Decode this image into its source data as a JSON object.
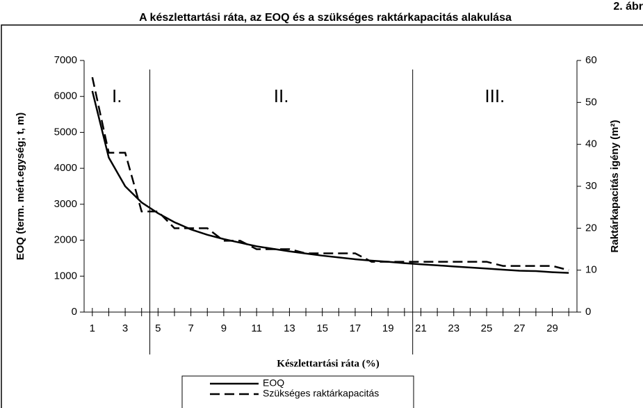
{
  "chart_data": {
    "type": "line",
    "figure_label": "2. ábr",
    "title": "A készlettartási ráta, az EOQ és a szükséges raktárkapacitás alakulása",
    "x_label": "Készlettartási ráta (%)",
    "y_label": "EOQ (term. mért.egység; t, m)",
    "y2_label": "Raktárkapacitás igény (m²)",
    "x": [
      1,
      2,
      3,
      4,
      5,
      6,
      7,
      8,
      9,
      10,
      11,
      12,
      13,
      14,
      15,
      16,
      17,
      18,
      19,
      20,
      21,
      22,
      23,
      24,
      25,
      26,
      27,
      28,
      29,
      30
    ],
    "xlim": [
      0.5,
      30.5
    ],
    "xticks": [
      1,
      3,
      5,
      7,
      9,
      11,
      13,
      15,
      17,
      19,
      21,
      23,
      25,
      27,
      29
    ],
    "ylim": [
      0,
      7000
    ],
    "yticks": [
      0,
      1000,
      2000,
      3000,
      4000,
      5000,
      6000,
      7000
    ],
    "y2lim": [
      0,
      60
    ],
    "y2ticks": [
      0,
      10,
      20,
      30,
      40,
      50,
      60
    ],
    "dividers": [
      4.5,
      20.5
    ],
    "regions": [
      "I.",
      "II.",
      "III."
    ],
    "series": [
      {
        "name": "EOQ",
        "color": "#000000",
        "dash": "solid",
        "values": [
          6150,
          4300,
          3500,
          3050,
          2750,
          2500,
          2300,
          2150,
          2030,
          1930,
          1830,
          1760,
          1690,
          1630,
          1570,
          1520,
          1470,
          1430,
          1400,
          1360,
          1330,
          1300,
          1270,
          1240,
          1210,
          1180,
          1150,
          1140,
          1110,
          1090
        ]
      },
      {
        "name": "Szükséges raktárkapacitás",
        "color": "#000000",
        "dash": "dashed",
        "axis": "y2",
        "values": [
          56,
          38,
          38,
          24,
          24,
          20,
          20,
          20,
          17,
          17,
          15,
          15,
          15,
          14,
          14,
          14,
          14,
          12,
          12,
          12,
          12,
          12,
          12,
          12,
          12,
          11,
          11,
          11,
          11,
          10
        ]
      }
    ]
  }
}
